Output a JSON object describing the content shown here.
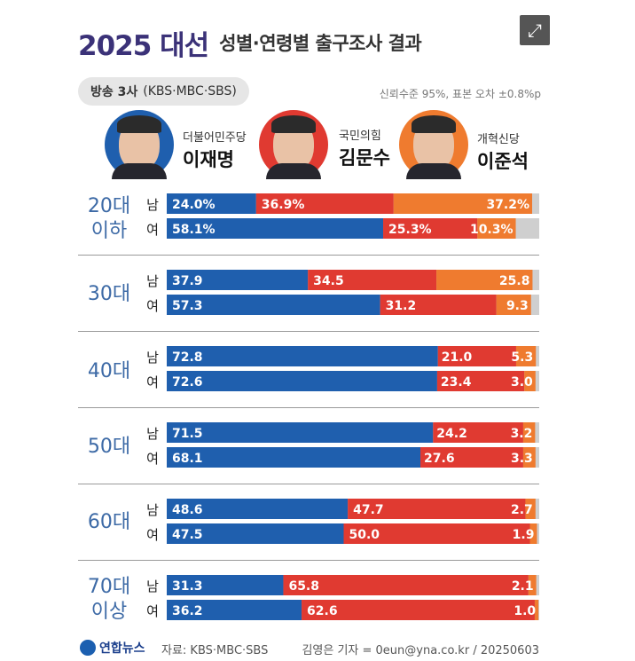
{
  "header": {
    "year_title": "2025 대선",
    "subtitle": "성별·연령별 출구조사 결과"
  },
  "pill": {
    "bold": "방송 3사",
    "rest": "(KBS·MBC·SBS)"
  },
  "note": "신뢰수준 95%, 표본 오차 ±0.8%p",
  "candidates": [
    {
      "party": "더불어민주당",
      "name": "이재명",
      "color": "#1f5fae",
      "ring": "#1f5fae"
    },
    {
      "party": "국민의힘",
      "name": "김문수",
      "color": "#e03a31",
      "ring": "#e03a31"
    },
    {
      "party": "개혁신당",
      "name": "이준석",
      "color": "#ef7b2f",
      "ring": "#ef7b2f"
    }
  ],
  "age_groups": [
    {
      "label": [
        "20대",
        "이하"
      ]
    },
    {
      "label": [
        "30대"
      ]
    },
    {
      "label": [
        "40대"
      ]
    },
    {
      "label": [
        "50대"
      ]
    },
    {
      "label": [
        "60대"
      ]
    },
    {
      "label": [
        "70대",
        "이상"
      ]
    }
  ],
  "genders": {
    "male": "남",
    "female": "여"
  },
  "chart_data": {
    "type": "bar",
    "stacked": true,
    "orientation": "horizontal",
    "unit": "%",
    "series": [
      {
        "name": "이재명",
        "color": "#1f5fae"
      },
      {
        "name": "김문수",
        "color": "#e03a31"
      },
      {
        "name": "이준석",
        "color": "#ef7b2f"
      },
      {
        "name": "other",
        "color": "#cfcfcf"
      }
    ],
    "rows": [
      {
        "group": "20대 이하",
        "gender": "남",
        "values": [
          24.0,
          36.9,
          37.2
        ],
        "labels": [
          "24.0%",
          "36.9%",
          "37.2%"
        ]
      },
      {
        "group": "20대 이하",
        "gender": "여",
        "values": [
          58.1,
          25.3,
          10.3
        ],
        "labels": [
          "58.1%",
          "25.3%",
          "10.3%"
        ]
      },
      {
        "group": "30대",
        "gender": "남",
        "values": [
          37.9,
          34.5,
          25.8
        ],
        "labels": [
          "37.9",
          "34.5",
          "25.8"
        ]
      },
      {
        "group": "30대",
        "gender": "여",
        "values": [
          57.3,
          31.2,
          9.3
        ],
        "labels": [
          "57.3",
          "31.2",
          "9.3"
        ]
      },
      {
        "group": "40대",
        "gender": "남",
        "values": [
          72.8,
          21.0,
          5.3
        ],
        "labels": [
          "72.8",
          "21.0",
          "5.3"
        ]
      },
      {
        "group": "40대",
        "gender": "여",
        "values": [
          72.6,
          23.4,
          3.0
        ],
        "labels": [
          "72.6",
          "23.4",
          "3.0"
        ]
      },
      {
        "group": "50대",
        "gender": "남",
        "values": [
          71.5,
          24.2,
          3.2
        ],
        "labels": [
          "71.5",
          "24.2",
          "3.2"
        ]
      },
      {
        "group": "50대",
        "gender": "여",
        "values": [
          68.1,
          27.6,
          3.3
        ],
        "labels": [
          "68.1",
          "27.6",
          "3.3"
        ]
      },
      {
        "group": "60대",
        "gender": "남",
        "values": [
          48.6,
          47.7,
          2.7
        ],
        "labels": [
          "48.6",
          "47.7",
          "2.7"
        ]
      },
      {
        "group": "60대",
        "gender": "여",
        "values": [
          47.5,
          50.0,
          1.9
        ],
        "labels": [
          "47.5",
          "50.0",
          "1.9"
        ]
      },
      {
        "group": "70대 이상",
        "gender": "남",
        "values": [
          31.3,
          65.8,
          2.1
        ],
        "labels": [
          "31.3",
          "65.8",
          "2.1"
        ]
      },
      {
        "group": "70대 이상",
        "gender": "여",
        "values": [
          36.2,
          62.6,
          1.0
        ],
        "labels": [
          "36.2",
          "62.6",
          "1.0"
        ]
      }
    ],
    "xlim": [
      0,
      100
    ]
  },
  "footer": {
    "logo": "연합뉴스",
    "source": "자료: KBS·MBC·SBS",
    "credit": "김영은 기자 = 0eun@yna.co.kr / 20250603"
  }
}
